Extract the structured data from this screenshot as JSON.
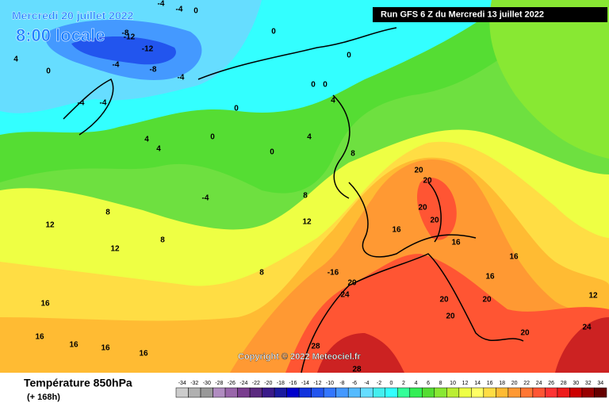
{
  "header": {
    "date": "Mercredi 20 juillet 2022",
    "time": "8:00 locale",
    "run": "Run GFS 6 Z du Mercredi 13 juillet 2022"
  },
  "copyright": "Copyright © 2022 Meteociel.fr",
  "footer": {
    "title": "Température 850hPa",
    "lead": "(+ 168h)"
  },
  "colorbar": {
    "labels": [
      -34,
      -32,
      -30,
      -28,
      -26,
      -24,
      -22,
      -20,
      -18,
      -16,
      -14,
      -12,
      -10,
      -8,
      -6,
      -4,
      -2,
      0,
      2,
      4,
      6,
      8,
      10,
      12,
      14,
      16,
      18,
      20,
      22,
      24,
      26,
      28,
      30,
      32,
      34
    ],
    "colors": [
      "#cccccc",
      "#b0b0b0",
      "#999999",
      "#b08cc0",
      "#9966aa",
      "#7a3d8f",
      "#5c2a80",
      "#3a1a8a",
      "#1a1aa0",
      "#0000cc",
      "#1133dd",
      "#2255ee",
      "#3377ff",
      "#4499ff",
      "#55bbff",
      "#66ddff",
      "#44eeee",
      "#33ffff",
      "#33ff99",
      "#33ee55",
      "#55dd33",
      "#88e833",
      "#bbee33",
      "#eeff44",
      "#ffff66",
      "#ffdd44",
      "#ffbb33",
      "#ff9933",
      "#ff7733",
      "#ff5533",
      "#ff3333",
      "#ee1a1a",
      "#cc0000",
      "#990000",
      "#660000"
    ]
  },
  "contour_labels": [
    -4,
    -4,
    0,
    -8,
    -12,
    -12,
    -8,
    -4,
    -4,
    0,
    0,
    0,
    0,
    -4,
    -4,
    0,
    4,
    4,
    4,
    0,
    0,
    4,
    8,
    -4,
    8,
    20,
    20,
    20,
    20,
    16,
    16,
    12,
    12,
    12,
    8,
    8,
    8,
    -16,
    20,
    24,
    16,
    16,
    20,
    20,
    20,
    20,
    24,
    28,
    28,
    16,
    16,
    16,
    16,
    16,
    12,
    0,
    4
  ]
}
